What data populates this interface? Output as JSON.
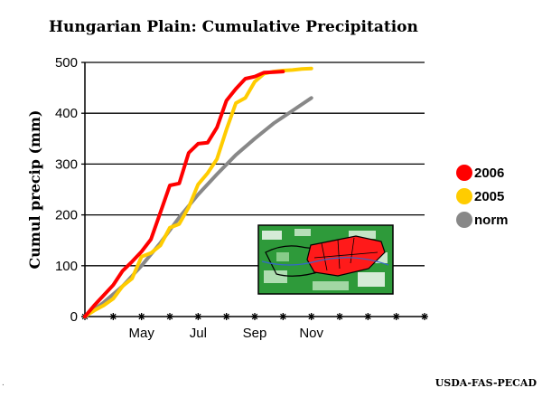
{
  "chart_data": {
    "type": "line",
    "title": "Hungarian Plain: Cumulative Precipitation",
    "xlabel": "",
    "ylabel": "Cumul precip (mm)",
    "ylim": [
      0,
      500
    ],
    "yticks": [
      0,
      100,
      200,
      300,
      400,
      500
    ],
    "xlim": [
      0,
      36
    ],
    "x_unit": "dekad (10-day period) starting March 1",
    "month_ticks": [
      {
        "label": "May",
        "x": 6
      },
      {
        "label": "Jul",
        "x": 12
      },
      {
        "label": "Sep",
        "x": 18
      },
      {
        "label": "Nov",
        "x": 24
      }
    ],
    "grid": "horizontal",
    "legend_position": "right",
    "series": [
      {
        "name": "2006",
        "color": "#ff0000",
        "x": [
          0,
          1,
          2,
          3,
          4,
          5,
          6,
          7,
          8,
          9,
          10,
          11,
          12,
          13,
          14,
          15,
          16,
          17,
          18,
          19,
          20,
          21
        ],
        "values": [
          0,
          22,
          42,
          62,
          90,
          108,
          128,
          152,
          205,
          258,
          262,
          322,
          340,
          342,
          372,
          425,
          448,
          468,
          472,
          480,
          481,
          482
        ]
      },
      {
        "name": "2005",
        "color": "#ffcc00",
        "x": [
          0,
          1,
          2,
          3,
          4,
          5,
          6,
          7,
          8,
          9,
          10,
          11,
          12,
          13,
          14,
          15,
          16,
          17,
          18,
          19,
          20,
          21,
          22,
          23,
          24
        ],
        "values": [
          0,
          12,
          22,
          35,
          60,
          75,
          118,
          125,
          140,
          175,
          182,
          215,
          260,
          282,
          310,
          368,
          420,
          430,
          462,
          478,
          482,
          484,
          485,
          487,
          488
        ]
      },
      {
        "name": "norm",
        "color": "#888888",
        "x": [
          0,
          2,
          4,
          6,
          8,
          10,
          12,
          14,
          16,
          18,
          20,
          22,
          24
        ],
        "values": [
          0,
          28,
          60,
          100,
          145,
          195,
          240,
          280,
          318,
          350,
          380,
          405,
          430
        ]
      }
    ]
  },
  "credit": "USDA-FAS-PECAD"
}
